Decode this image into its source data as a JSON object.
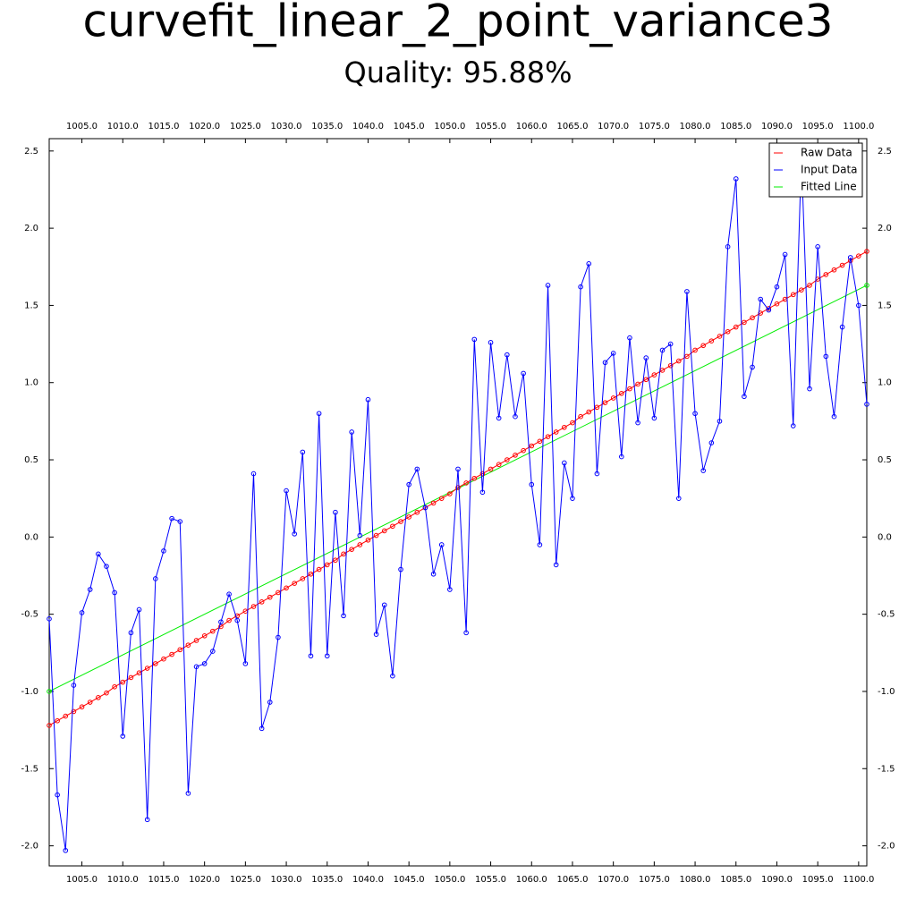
{
  "chart_data": {
    "type": "line",
    "title": "curvefit_linear_2_point_variance3",
    "subtitle": "Quality: 95.88%",
    "xlim": [
      1001,
      1101
    ],
    "ylim": [
      -2.13,
      2.58
    ],
    "xticks": [
      {
        "value": 1005,
        "label": "1005.0"
      },
      {
        "value": 1010,
        "label": "1010.0"
      },
      {
        "value": 1015,
        "label": "1015.0"
      },
      {
        "value": 1020,
        "label": "1020.0"
      },
      {
        "value": 1025,
        "label": "1025.0"
      },
      {
        "value": 1030,
        "label": "1030.0"
      },
      {
        "value": 1035,
        "label": "1035.0"
      },
      {
        "value": 1040,
        "label": "1040.0"
      },
      {
        "value": 1045,
        "label": "1045.0"
      },
      {
        "value": 1050,
        "label": "1050.0"
      },
      {
        "value": 1055,
        "label": "1055.0"
      },
      {
        "value": 1060,
        "label": "1060.0"
      },
      {
        "value": 1065,
        "label": "1065.0"
      },
      {
        "value": 1070,
        "label": "1070.0"
      },
      {
        "value": 1075,
        "label": "1075.0"
      },
      {
        "value": 1080,
        "label": "1080.0"
      },
      {
        "value": 1085,
        "label": "1085.0"
      },
      {
        "value": 1090,
        "label": "1090.0"
      },
      {
        "value": 1095,
        "label": "1095.0"
      },
      {
        "value": 1100,
        "label": "1100.0"
      }
    ],
    "yticks": [
      {
        "value": -2,
        "label": "-2.0"
      },
      {
        "value": -1.5,
        "label": "-1.5"
      },
      {
        "value": -1,
        "label": "-1.0"
      },
      {
        "value": -0.5,
        "label": "-0.5"
      },
      {
        "value": 0,
        "label": "0.0"
      },
      {
        "value": 0.5,
        "label": "0.5"
      },
      {
        "value": 1,
        "label": "1.0"
      },
      {
        "value": 1.5,
        "label": "1.5"
      },
      {
        "value": 2,
        "label": "2.0"
      },
      {
        "value": 2.5,
        "label": "2.5"
      }
    ],
    "legend": "upper right",
    "series": [
      {
        "name": "Raw Data",
        "color": "#ff0000",
        "markers": true,
        "x": [
          1001,
          1002,
          1003,
          1004,
          1005,
          1006,
          1007,
          1008,
          1009,
          1010,
          1011,
          1012,
          1013,
          1014,
          1015,
          1016,
          1017,
          1018,
          1019,
          1020,
          1021,
          1022,
          1023,
          1024,
          1025,
          1026,
          1027,
          1028,
          1029,
          1030,
          1031,
          1032,
          1033,
          1034,
          1035,
          1036,
          1037,
          1038,
          1039,
          1040,
          1041,
          1042,
          1043,
          1044,
          1045,
          1046,
          1047,
          1048,
          1049,
          1050,
          1051,
          1052,
          1053,
          1054,
          1055,
          1056,
          1057,
          1058,
          1059,
          1060,
          1061,
          1062,
          1063,
          1064,
          1065,
          1066,
          1067,
          1068,
          1069,
          1070,
          1071,
          1072,
          1073,
          1074,
          1075,
          1076,
          1077,
          1078,
          1079,
          1080,
          1081,
          1082,
          1083,
          1084,
          1085,
          1086,
          1087,
          1088,
          1089,
          1090,
          1091,
          1092,
          1093,
          1094,
          1095,
          1096,
          1097,
          1098,
          1099,
          1100,
          1101
        ],
        "values": [
          -1.22,
          -1.19,
          -1.16,
          -1.13,
          -1.1,
          -1.07,
          -1.04,
          -1.01,
          -0.97,
          -0.94,
          -0.91,
          -0.88,
          -0.85,
          -0.82,
          -0.79,
          -0.76,
          -0.73,
          -0.7,
          -0.67,
          -0.64,
          -0.61,
          -0.58,
          -0.54,
          -0.51,
          -0.48,
          -0.45,
          -0.42,
          -0.39,
          -0.36,
          -0.33,
          -0.3,
          -0.27,
          -0.24,
          -0.21,
          -0.18,
          -0.15,
          -0.11,
          -0.08,
          -0.05,
          -0.02,
          0.01,
          0.04,
          0.07,
          0.1,
          0.13,
          0.16,
          0.19,
          0.22,
          0.25,
          0.28,
          0.32,
          0.35,
          0.38,
          0.41,
          0.44,
          0.47,
          0.5,
          0.53,
          0.56,
          0.59,
          0.62,
          0.65,
          0.68,
          0.71,
          0.74,
          0.78,
          0.81,
          0.84,
          0.87,
          0.9,
          0.93,
          0.96,
          0.99,
          1.02,
          1.05,
          1.08,
          1.11,
          1.14,
          1.17,
          1.21,
          1.24,
          1.27,
          1.3,
          1.33,
          1.36,
          1.39,
          1.42,
          1.45,
          1.48,
          1.51,
          1.54,
          1.57,
          1.6,
          1.63,
          1.67,
          1.7,
          1.73,
          1.76,
          1.79,
          1.82,
          1.85
        ]
      },
      {
        "name": "Input Data",
        "color": "#0000ff",
        "markers": true,
        "x": [
          1001,
          1002,
          1003,
          1004,
          1005,
          1006,
          1007,
          1008,
          1009,
          1010,
          1011,
          1012,
          1013,
          1014,
          1015,
          1016,
          1017,
          1018,
          1019,
          1020,
          1021,
          1022,
          1023,
          1024,
          1025,
          1026,
          1027,
          1028,
          1029,
          1030,
          1031,
          1032,
          1033,
          1034,
          1035,
          1036,
          1037,
          1038,
          1039,
          1040,
          1041,
          1042,
          1043,
          1044,
          1045,
          1046,
          1047,
          1048,
          1049,
          1050,
          1051,
          1052,
          1053,
          1054,
          1055,
          1056,
          1057,
          1058,
          1059,
          1060,
          1061,
          1062,
          1063,
          1064,
          1065,
          1066,
          1067,
          1068,
          1069,
          1070,
          1071,
          1072,
          1073,
          1074,
          1075,
          1076,
          1077,
          1078,
          1079,
          1080,
          1081,
          1082,
          1083,
          1084,
          1085,
          1086,
          1087,
          1088,
          1089,
          1090,
          1091,
          1092,
          1093,
          1094,
          1095,
          1096,
          1097,
          1098,
          1099,
          1100,
          1101
        ],
        "values": [
          -0.53,
          -1.67,
          -2.03,
          -0.96,
          -0.49,
          -0.34,
          -0.11,
          -0.19,
          -0.36,
          -1.29,
          -0.62,
          -0.47,
          -1.83,
          -0.27,
          -0.09,
          0.12,
          0.1,
          -1.66,
          -0.84,
          -0.82,
          -0.74,
          -0.55,
          -0.37,
          -0.54,
          -0.82,
          0.41,
          -1.24,
          -1.07,
          -0.65,
          0.3,
          0.02,
          0.55,
          -0.77,
          0.8,
          -0.77,
          0.16,
          -0.51,
          0.68,
          0.01,
          0.89,
          -0.63,
          -0.44,
          -0.9,
          -0.21,
          0.34,
          0.44,
          0.19,
          -0.24,
          -0.05,
          -0.34,
          0.44,
          -0.62,
          1.28,
          0.29,
          1.26,
          0.77,
          1.18,
          0.78,
          1.06,
          0.34,
          -0.05,
          1.63,
          -0.18,
          0.48,
          0.25,
          1.62,
          1.77,
          0.41,
          1.13,
          1.19,
          0.52,
          1.29,
          0.74,
          1.16,
          0.77,
          1.21,
          1.25,
          0.25,
          1.59,
          0.8,
          0.43,
          0.61,
          0.75,
          1.88,
          2.32,
          0.91,
          1.1,
          1.54,
          1.47,
          1.62,
          1.83,
          0.72,
          2.47,
          0.96,
          1.88,
          1.17,
          0.78,
          1.36,
          1.81,
          1.5,
          0.86
        ]
      },
      {
        "name": "Fitted Line",
        "color": "#00ee00",
        "markers": true,
        "x": [
          1001,
          1101
        ],
        "values": [
          -1.0,
          1.63
        ]
      }
    ]
  }
}
